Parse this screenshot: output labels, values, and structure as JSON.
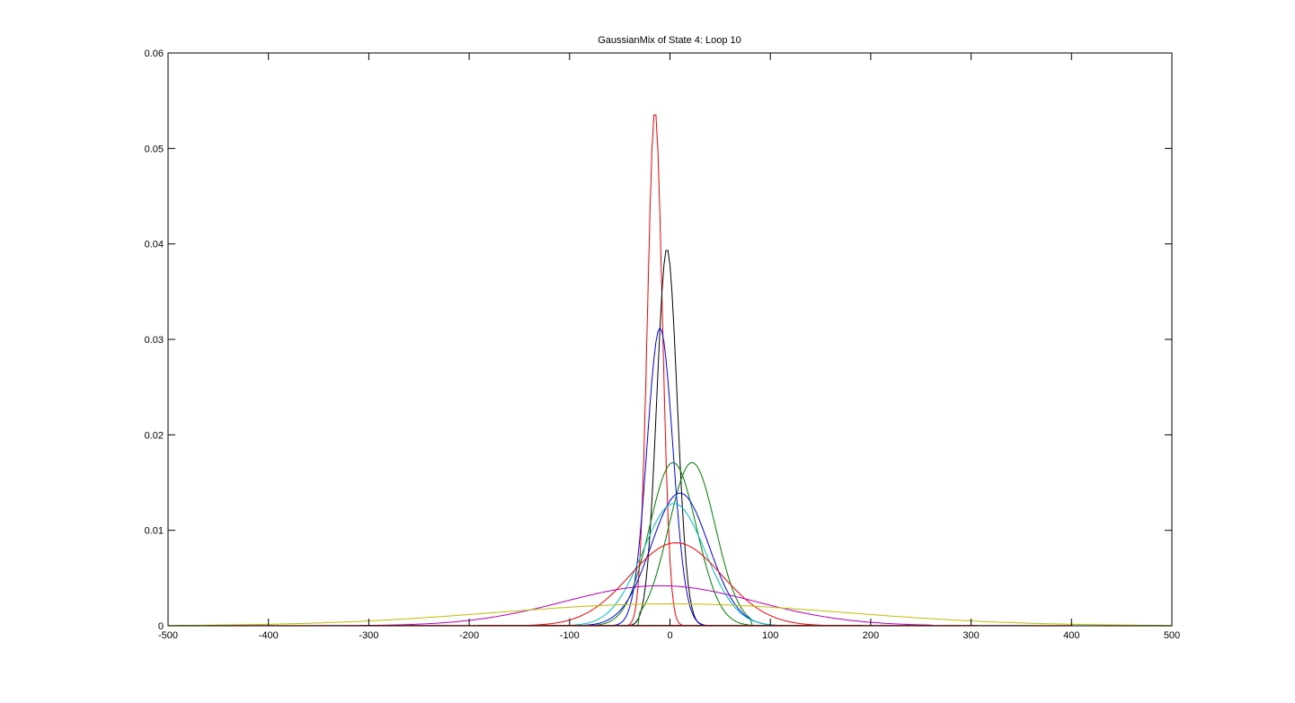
{
  "chart_data": {
    "type": "line",
    "title": "GaussianMix of State 4: Loop 10",
    "xlabel": "",
    "ylabel": "",
    "xlim": [
      -500,
      500
    ],
    "ylim": [
      0,
      0.06
    ],
    "xticks": [
      -500,
      -400,
      -300,
      -200,
      -100,
      0,
      100,
      200,
      300,
      400,
      500
    ],
    "xtick_labels": [
      "-500",
      "-400",
      "-300",
      "-200",
      "-100",
      "0",
      "100",
      "200",
      "300",
      "400",
      "500"
    ],
    "yticks": [
      0,
      0.01,
      0.02,
      0.03,
      0.04,
      0.05,
      0.06
    ],
    "ytick_labels": [
      "0",
      "0.01",
      "0.02",
      "0.03",
      "0.04",
      "0.05",
      "0.06"
    ],
    "grid": false,
    "legend": "none",
    "x_start": -500,
    "x_end": 500,
    "x_step": 2,
    "series": [
      {
        "color": "#ff0000",
        "peak_x": -15,
        "peak_y": 0.054,
        "sigma": 7.4,
        "x_min": -40,
        "x_max": 20
      },
      {
        "color": "#000000",
        "peak_x": -3,
        "peak_y": 0.0395,
        "sigma": 10.1,
        "x_min": -40,
        "x_max": 40
      },
      {
        "color": "#0000ff",
        "peak_x": -10,
        "peak_y": 0.0312,
        "sigma": 12.8,
        "x_min": -60,
        "x_max": 40
      },
      {
        "color": "#008000",
        "peak_x": 22,
        "peak_y": 0.0171,
        "sigma": 23.3,
        "x_min": -30,
        "x_max": 80
      },
      {
        "color": "#008000",
        "peak_x": 3,
        "peak_y": 0.0171,
        "sigma": 23.3,
        "x_min": -100,
        "x_max": 100
      },
      {
        "color": "#0000ff",
        "peak_x": 10,
        "peak_y": 0.0139,
        "sigma": 28.7,
        "x_min": -110,
        "x_max": 120
      },
      {
        "color": "#00bfbf",
        "peak_x": 4,
        "peak_y": 0.0128,
        "sigma": 31.2,
        "x_min": -120,
        "x_max": 120
      },
      {
        "color": "#ff0000",
        "peak_x": 6,
        "peak_y": 0.0087,
        "sigma": 45.9,
        "x_min": -200,
        "x_max": 200
      },
      {
        "color": "#bf00bf",
        "peak_x": -10,
        "peak_y": 0.0042,
        "sigma": 95,
        "x_min": -460,
        "x_max": 260
      },
      {
        "color": "#bfbf00",
        "peak_x": 0,
        "peak_y": 0.0023,
        "sigma": 173,
        "x_min": -500,
        "x_max": 500
      },
      {
        "color": "#ff0000",
        "peak_x": 0,
        "peak_y": 5e-05,
        "sigma": 300,
        "x_min": -460,
        "x_max": 400
      }
    ]
  }
}
